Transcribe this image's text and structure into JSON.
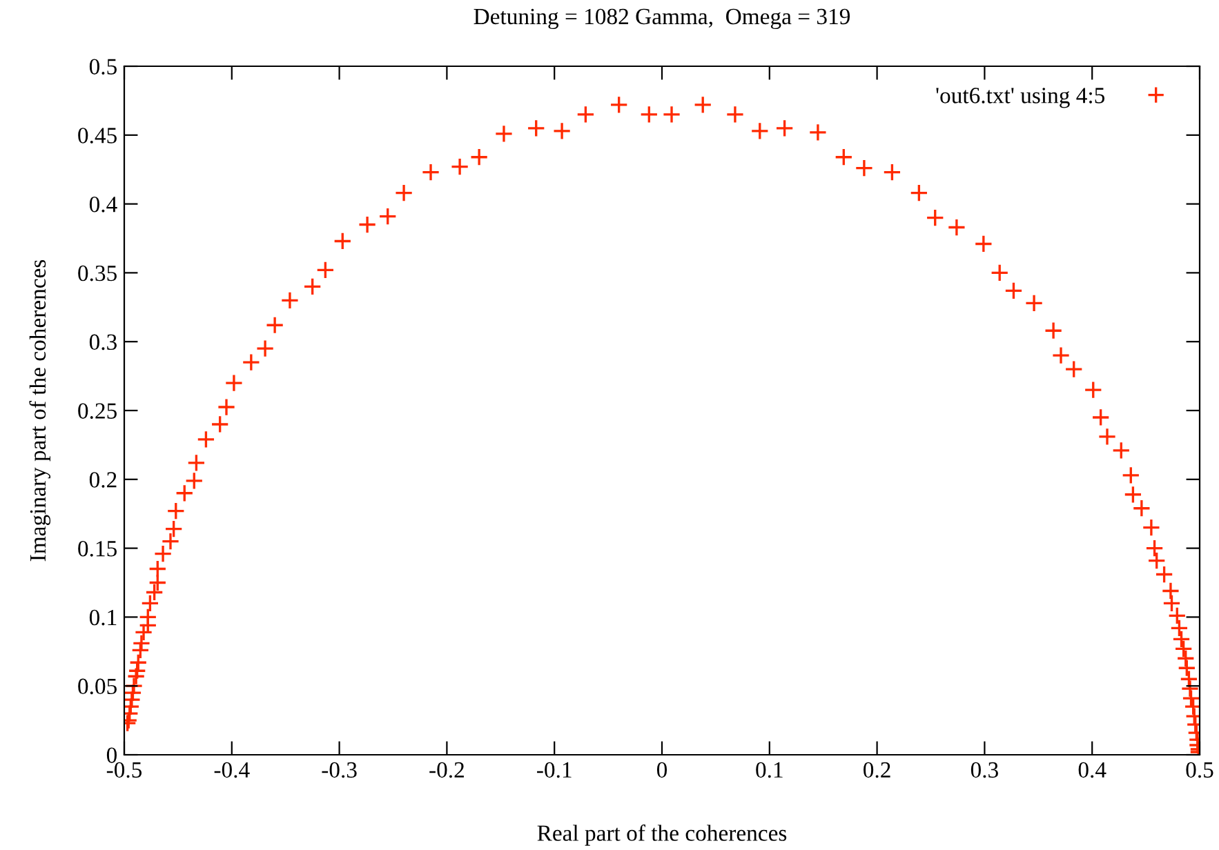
{
  "chart_data": {
    "type": "scatter",
    "title": "Detuning = 1082 Gamma,  Omega = 319",
    "xlabel": "Real part of the coherences",
    "ylabel": "Imaginary part of the coherences",
    "xlim": [
      -0.5,
      0.5
    ],
    "xticks": [
      -0.5,
      -0.4,
      -0.3,
      -0.2,
      -0.1,
      0,
      0.1,
      0.2,
      0.3,
      0.4,
      0.5
    ],
    "ylim": [
      0,
      0.5
    ],
    "yticks": [
      0,
      0.05,
      0.1,
      0.15,
      0.2,
      0.25,
      0.3,
      0.35,
      0.4,
      0.45,
      0.5
    ],
    "grid": false,
    "legend": "top right",
    "marker": "cross",
    "series": [
      {
        "name": "'out6.txt' using 4:5",
        "color": "#ff2a00",
        "x": [
          -0.497,
          -0.496,
          -0.495,
          -0.494,
          -0.493,
          -0.492,
          -0.491,
          -0.489,
          -0.488,
          -0.487,
          -0.485,
          -0.484,
          -0.482,
          -0.478,
          -0.478,
          -0.476,
          -0.472,
          -0.469,
          -0.469,
          -0.464,
          -0.457,
          -0.454,
          -0.452,
          -0.444,
          -0.435,
          -0.433,
          -0.424,
          -0.411,
          -0.405,
          -0.398,
          -0.382,
          -0.369,
          -0.36,
          -0.346,
          -0.325,
          -0.313,
          -0.297,
          -0.274,
          -0.255,
          -0.24,
          -0.215,
          -0.188,
          -0.17,
          -0.147,
          -0.117,
          -0.093,
          -0.071,
          -0.04,
          -0.012,
          0.009,
          0.038,
          0.068,
          0.091,
          0.114,
          0.145,
          0.169,
          0.188,
          0.214,
          0.239,
          0.254,
          0.274,
          0.299,
          0.314,
          0.327,
          0.346,
          0.364,
          0.371,
          0.383,
          0.401,
          0.408,
          0.414,
          0.427,
          0.436,
          0.438,
          0.446,
          0.455,
          0.458,
          0.46,
          0.467,
          0.473,
          0.474,
          0.479,
          0.481,
          0.483,
          0.485,
          0.487,
          0.488,
          0.49,
          0.491,
          0.492,
          0.494,
          0.495,
          0.496,
          0.497,
          0.498,
          0.498,
          0.499,
          0.499
        ],
        "values": [
          0.023,
          0.025,
          0.03,
          0.035,
          0.04,
          0.045,
          0.05,
          0.057,
          0.061,
          0.067,
          0.076,
          0.081,
          0.089,
          0.094,
          0.1,
          0.11,
          0.118,
          0.125,
          0.135,
          0.146,
          0.155,
          0.164,
          0.177,
          0.19,
          0.199,
          0.212,
          0.229,
          0.24,
          0.2525,
          0.27,
          0.285,
          0.295,
          0.312,
          0.33,
          0.34,
          0.352,
          0.373,
          0.385,
          0.391,
          0.408,
          0.423,
          0.427,
          0.434,
          0.451,
          0.455,
          0.453,
          0.465,
          0.472,
          0.465,
          0.465,
          0.472,
          0.465,
          0.453,
          0.455,
          0.452,
          0.434,
          0.426,
          0.423,
          0.408,
          0.39,
          0.383,
          0.371,
          0.35,
          0.337,
          0.328,
          0.308,
          0.29,
          0.28,
          0.265,
          0.245,
          0.231,
          0.221,
          0.203,
          0.189,
          0.179,
          0.165,
          0.15,
          0.141,
          0.131,
          0.119,
          0.11,
          0.101,
          0.092,
          0.084,
          0.077,
          0.07,
          0.063,
          0.055,
          0.048,
          0.041,
          0.035,
          0.028,
          0.022,
          0.016,
          0.011,
          0.007,
          0.004,
          0.002
        ]
      }
    ]
  }
}
